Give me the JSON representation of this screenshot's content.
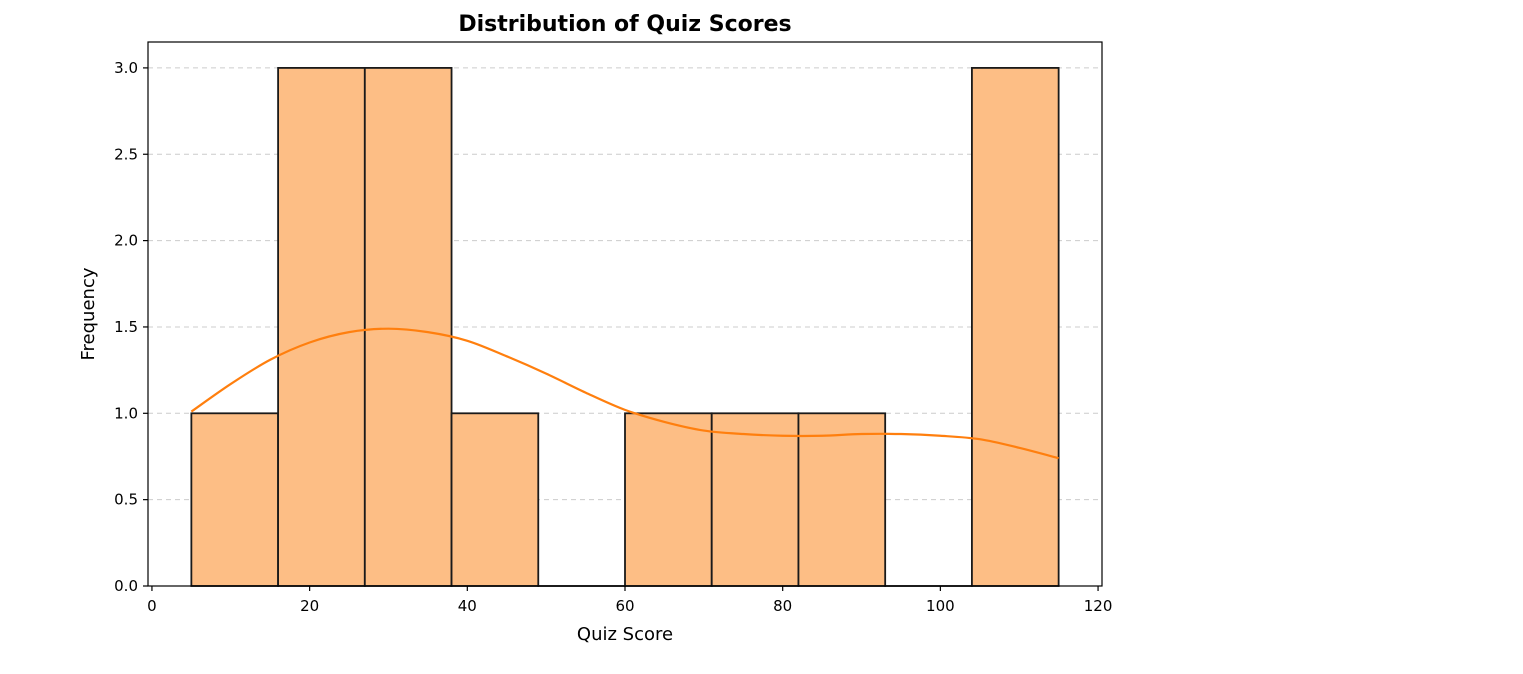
{
  "chart_data": {
    "type": "bar",
    "title": "Distribution of Quiz Scores",
    "xlabel": "Quiz Score",
    "ylabel": "Frequency",
    "xlim": [
      -0.5,
      120.5
    ],
    "ylim": [
      0,
      3.15
    ],
    "x_ticks": [
      0,
      20,
      40,
      60,
      80,
      100,
      120
    ],
    "y_ticks": [
      0.0,
      0.5,
      1.0,
      1.5,
      2.0,
      2.5,
      3.0
    ],
    "y_tick_labels": [
      "0.0",
      "0.5",
      "1.0",
      "1.5",
      "2.0",
      "2.5",
      "3.0"
    ],
    "bins": [
      {
        "x0": 5,
        "x1": 16,
        "count": 1
      },
      {
        "x0": 16,
        "x1": 27,
        "count": 3
      },
      {
        "x0": 27,
        "x1": 38,
        "count": 3
      },
      {
        "x0": 38,
        "x1": 49,
        "count": 1
      },
      {
        "x0": 49,
        "x1": 60,
        "count": 0
      },
      {
        "x0": 60,
        "x1": 71,
        "count": 1
      },
      {
        "x0": 71,
        "x1": 82,
        "count": 1
      },
      {
        "x0": 82,
        "x1": 93,
        "count": 1
      },
      {
        "x0": 93,
        "x1": 104,
        "count": 0
      },
      {
        "x0": 104,
        "x1": 115,
        "count": 3
      }
    ],
    "kde": {
      "x": [
        5,
        10,
        15,
        20,
        25,
        30,
        35,
        40,
        45,
        50,
        55,
        60,
        65,
        70,
        75,
        80,
        85,
        90,
        95,
        100,
        105,
        110,
        115
      ],
      "y": [
        1.01,
        1.17,
        1.31,
        1.41,
        1.47,
        1.49,
        1.47,
        1.42,
        1.33,
        1.23,
        1.12,
        1.02,
        0.95,
        0.9,
        0.88,
        0.87,
        0.87,
        0.88,
        0.88,
        0.87,
        0.85,
        0.8,
        0.74
      ]
    },
    "grid": {
      "axis": "y",
      "style": "dashed"
    },
    "colors": {
      "bar_fill": "#fdbe85",
      "bar_edge": "#1a1a1a",
      "kde_line": "#ff7f0e",
      "grid": "#cccccc"
    }
  }
}
